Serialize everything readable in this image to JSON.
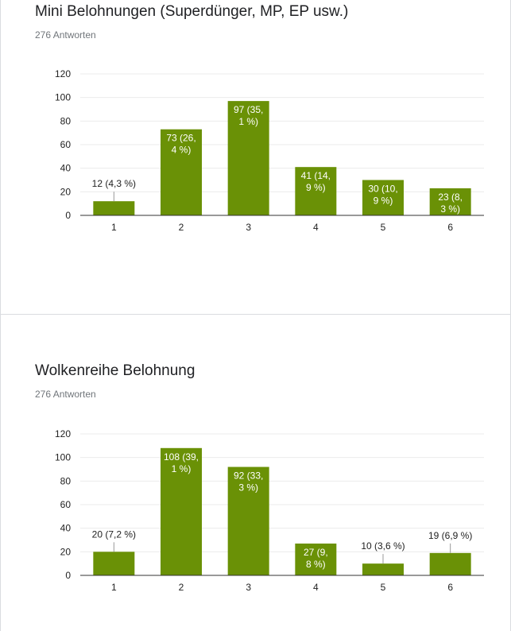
{
  "charts": [
    {
      "title": "Mini Belohnungen (Superdünger, MP, EP usw.)",
      "responses": "276 Antworten"
    },
    {
      "title": "Wolkenreihe Belohnung",
      "responses": "276 Antworten"
    }
  ],
  "colors": {
    "bar": "#6a9106",
    "grid": "#ebebeb",
    "axis": "#333333"
  },
  "chart_data": [
    {
      "type": "bar",
      "title": "Mini Belohnungen (Superdünger, MP, EP usw.)",
      "categories": [
        "1",
        "2",
        "3",
        "4",
        "5",
        "6"
      ],
      "values": [
        12,
        73,
        97,
        41,
        30,
        23
      ],
      "data_labels": [
        [
          "12 (4,3 %)"
        ],
        [
          "73 (26,",
          "4 %)"
        ],
        [
          "97 (35,",
          "1 %)"
        ],
        [
          "41 (14,",
          "9 %)"
        ],
        [
          "30 (10,",
          "9 %)"
        ],
        [
          "23 (8,",
          "3 %)"
        ]
      ],
      "y_ticks": [
        "0",
        "20",
        "40",
        "60",
        "80",
        "100",
        "120"
      ],
      "ylim": [
        0,
        120
      ],
      "grid": true
    },
    {
      "type": "bar",
      "title": "Wolkenreihe Belohnung",
      "categories": [
        "1",
        "2",
        "3",
        "4",
        "5",
        "6"
      ],
      "values": [
        20,
        108,
        92,
        27,
        10,
        19
      ],
      "data_labels": [
        [
          "20 (7,2 %)"
        ],
        [
          "108 (39,",
          "1 %)"
        ],
        [
          "92 (33,",
          "3 %)"
        ],
        [
          "27 (9,",
          "8 %)"
        ],
        [
          "10 (3,6 %)"
        ],
        [
          "19 (6,9 %)"
        ]
      ],
      "y_ticks": [
        "0",
        "20",
        "40",
        "60",
        "80",
        "100",
        "120"
      ],
      "ylim": [
        0,
        120
      ],
      "grid": true
    }
  ]
}
